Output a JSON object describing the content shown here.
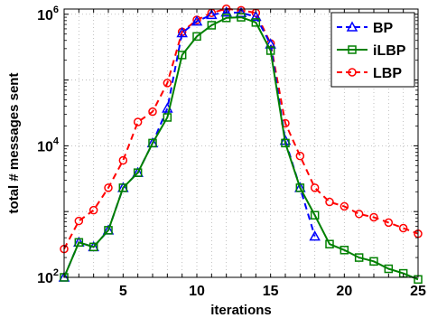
{
  "chart_data": {
    "type": "line",
    "title": "",
    "xlabel": "iterations",
    "ylabel": "total # messages sent",
    "xlim": [
      1,
      25
    ],
    "ylim": [
      100,
      1200000
    ],
    "yscale": "log",
    "grid": true,
    "legend_position": "top-right",
    "x_ticks": [
      5,
      10,
      15,
      20,
      25
    ],
    "y_ticks": [
      {
        "value": 100,
        "base": "10",
        "exp": "2"
      },
      {
        "value": 10000,
        "base": "10",
        "exp": "4"
      },
      {
        "value": 1000000,
        "base": "10",
        "exp": "6"
      }
    ],
    "x": [
      1,
      2,
      3,
      4,
      5,
      6,
      7,
      8,
      9,
      10,
      11,
      12,
      13,
      14,
      15,
      16,
      17,
      18,
      19,
      20,
      21,
      22,
      23,
      24,
      25
    ],
    "series": [
      {
        "name": "BP",
        "color": "#0000ff",
        "dash": "dashed",
        "marker": "triangle",
        "x": [
          1,
          2,
          3,
          4,
          5,
          6,
          7,
          8,
          9,
          10,
          11,
          12,
          13,
          14,
          15,
          16,
          17,
          18
        ],
        "values": [
          100,
          340,
          290,
          520,
          2300,
          3900,
          11000,
          37000,
          520000,
          780000,
          980000,
          1070000,
          1050000,
          920000,
          350000,
          12000,
          2300,
          420
        ]
      },
      {
        "name": "iLBP",
        "color": "#008000",
        "dash": "solid",
        "marker": "square",
        "x": [
          1,
          2,
          3,
          4,
          5,
          6,
          7,
          8,
          9,
          10,
          11,
          12,
          13,
          14,
          15,
          16,
          17,
          18,
          19,
          20,
          21,
          22,
          23,
          24,
          25
        ],
        "values": [
          100,
          340,
          290,
          520,
          2300,
          3900,
          11000,
          27000,
          240000,
          460000,
          680000,
          880000,
          900000,
          750000,
          280000,
          11000,
          2300,
          880,
          320,
          260,
          200,
          175,
          135,
          115,
          93
        ]
      },
      {
        "name": "LBP",
        "color": "#ff0000",
        "dash": "dashed",
        "marker": "circle",
        "x": [
          1,
          2,
          3,
          4,
          5,
          6,
          7,
          8,
          9,
          10,
          11,
          12,
          13,
          14,
          15,
          16,
          17,
          18,
          19,
          20,
          21,
          22,
          23,
          24,
          25
        ],
        "values": [
          270,
          720,
          1050,
          2300,
          6000,
          23000,
          33000,
          90000,
          540000,
          820000,
          1050000,
          1210000,
          1150000,
          1050000,
          360000,
          22000,
          7000,
          2300,
          1400,
          1200,
          920,
          820,
          680,
          560,
          460
        ]
      }
    ]
  }
}
